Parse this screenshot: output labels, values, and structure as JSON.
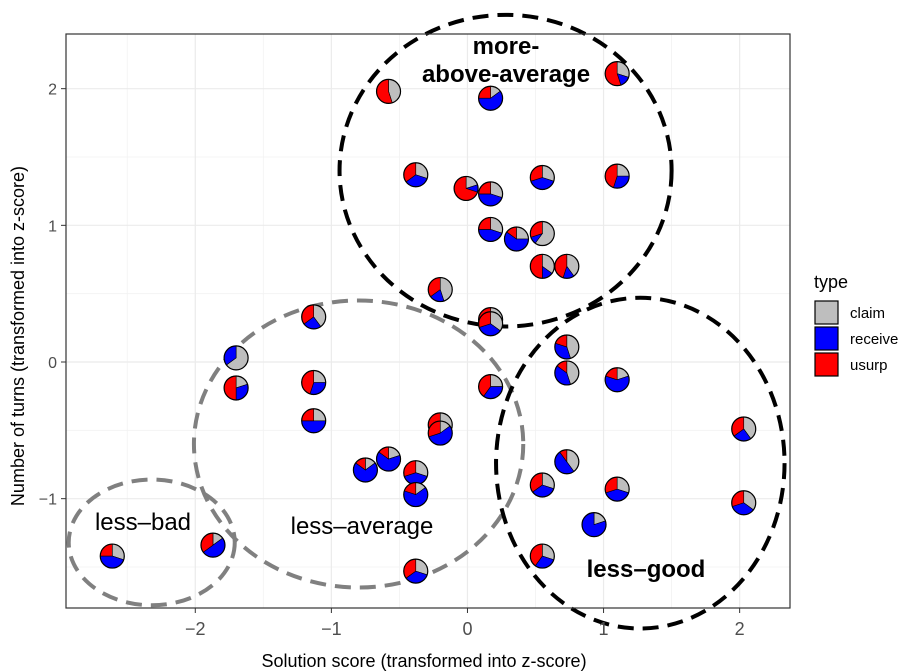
{
  "chart_data": {
    "type": "scatter",
    "subtype": "pie-glyph scatter",
    "xlabel": "Solution score (transformed into z-score)",
    "ylabel": "Number of turns (transformed into z-score)",
    "xlim": [
      -2.95,
      2.37
    ],
    "ylim": [
      -1.8,
      2.4
    ],
    "x_ticks": [
      -2,
      -1,
      0,
      1,
      2
    ],
    "y_ticks": [
      -1,
      0,
      1,
      2
    ],
    "x_tick_labels": [
      "−2",
      "−1",
      "0",
      "1",
      "2"
    ],
    "y_tick_labels": [
      "−1",
      "0",
      "1",
      "2"
    ],
    "grid": true,
    "legend": {
      "title": "type",
      "position": "right",
      "items": [
        {
          "label": "claim",
          "color": "#bebebe"
        },
        {
          "label": "receive",
          "color": "#0000ff"
        },
        {
          "label": "usurp",
          "color": "#ff0000"
        }
      ]
    },
    "colors": {
      "claim": "#bebebe",
      "receive": "#0000ff",
      "usurp": "#ff0000"
    },
    "points": [
      {
        "x": -2.61,
        "y": -1.42,
        "claim": 0.3,
        "receive": 0.45,
        "usurp": 0.25
      },
      {
        "x": -1.87,
        "y": -1.34,
        "claim": 0.15,
        "receive": 0.5,
        "usurp": 0.35
      },
      {
        "x": -1.7,
        "y": 0.03,
        "claim": 0.65,
        "receive": 0.35,
        "usurp": 0.0
      },
      {
        "x": -1.7,
        "y": -0.19,
        "claim": 0.2,
        "receive": 0.3,
        "usurp": 0.5
      },
      {
        "x": -1.13,
        "y": 0.33,
        "claim": 0.4,
        "receive": 0.25,
        "usurp": 0.35
      },
      {
        "x": -1.13,
        "y": -0.15,
        "claim": 0.25,
        "receive": 0.3,
        "usurp": 0.45
      },
      {
        "x": -1.13,
        "y": -0.43,
        "claim": 0.25,
        "receive": 0.5,
        "usurp": 0.25
      },
      {
        "x": -0.58,
        "y": 1.98,
        "claim": 0.45,
        "receive": 0.0,
        "usurp": 0.55
      },
      {
        "x": -0.58,
        "y": -0.71,
        "claim": 0.2,
        "receive": 0.65,
        "usurp": 0.15
      },
      {
        "x": -0.38,
        "y": 1.37,
        "claim": 0.3,
        "receive": 0.35,
        "usurp": 0.35
      },
      {
        "x": -0.38,
        "y": -0.81,
        "claim": 0.3,
        "receive": 0.4,
        "usurp": 0.3
      },
      {
        "x": -0.38,
        "y": -0.97,
        "claim": 0.15,
        "receive": 0.65,
        "usurp": 0.2
      },
      {
        "x": -0.38,
        "y": -1.53,
        "claim": 0.3,
        "receive": 0.35,
        "usurp": 0.35
      },
      {
        "x": -0.75,
        "y": -0.79,
        "claim": 0.15,
        "receive": 0.7,
        "usurp": 0.15
      },
      {
        "x": -0.2,
        "y": 0.53,
        "claim": 0.45,
        "receive": 0.2,
        "usurp": 0.35
      },
      {
        "x": -0.2,
        "y": -0.46,
        "claim": 0.35,
        "receive": 0.2,
        "usurp": 0.45
      },
      {
        "x": -0.2,
        "y": -0.52,
        "claim": 0.15,
        "receive": 0.55,
        "usurp": 0.3
      },
      {
        "x": -0.01,
        "y": 1.27,
        "claim": 0.2,
        "receive": 0.1,
        "usurp": 0.7
      },
      {
        "x": 0.17,
        "y": 1.93,
        "claim": 0.15,
        "receive": 0.6,
        "usurp": 0.25
      },
      {
        "x": 0.17,
        "y": 1.23,
        "claim": 0.3,
        "receive": 0.45,
        "usurp": 0.25
      },
      {
        "x": 0.17,
        "y": 0.97,
        "claim": 0.3,
        "receive": 0.45,
        "usurp": 0.25
      },
      {
        "x": 0.17,
        "y": 0.31,
        "claim": 0.3,
        "receive": 0.2,
        "usurp": 0.5
      },
      {
        "x": 0.17,
        "y": 0.28,
        "claim": 0.35,
        "receive": 0.35,
        "usurp": 0.3
      },
      {
        "x": 0.17,
        "y": -0.18,
        "claim": 0.25,
        "receive": 0.35,
        "usurp": 0.4
      },
      {
        "x": 0.36,
        "y": 0.9,
        "claim": 0.25,
        "receive": 0.6,
        "usurp": 0.15
      },
      {
        "x": 0.55,
        "y": 1.35,
        "claim": 0.3,
        "receive": 0.4,
        "usurp": 0.3
      },
      {
        "x": 0.55,
        "y": 0.94,
        "claim": 0.6,
        "receive": 0.1,
        "usurp": 0.3
      },
      {
        "x": 0.55,
        "y": 0.7,
        "claim": 0.35,
        "receive": 0.15,
        "usurp": 0.5
      },
      {
        "x": 0.55,
        "y": -0.9,
        "claim": 0.3,
        "receive": 0.35,
        "usurp": 0.35
      },
      {
        "x": 0.55,
        "y": -1.42,
        "claim": 0.3,
        "receive": 0.3,
        "usurp": 0.4
      },
      {
        "x": 0.73,
        "y": 0.7,
        "claim": 0.4,
        "receive": 0.15,
        "usurp": 0.45
      },
      {
        "x": 0.73,
        "y": 0.11,
        "claim": 0.45,
        "receive": 0.35,
        "usurp": 0.2
      },
      {
        "x": 0.73,
        "y": -0.08,
        "claim": 0.45,
        "receive": 0.4,
        "usurp": 0.15
      },
      {
        "x": 0.73,
        "y": -0.73,
        "claim": 0.4,
        "receive": 0.5,
        "usurp": 0.1
      },
      {
        "x": 0.93,
        "y": -1.19,
        "claim": 0.2,
        "receive": 0.8,
        "usurp": 0.0
      },
      {
        "x": 1.1,
        "y": 2.11,
        "claim": 0.3,
        "receive": 0.15,
        "usurp": 0.55
      },
      {
        "x": 1.1,
        "y": 1.36,
        "claim": 0.25,
        "receive": 0.3,
        "usurp": 0.45
      },
      {
        "x": 1.1,
        "y": -0.13,
        "claim": 0.2,
        "receive": 0.6,
        "usurp": 0.2
      },
      {
        "x": 1.1,
        "y": -0.93,
        "claim": 0.3,
        "receive": 0.4,
        "usurp": 0.3
      },
      {
        "x": 2.03,
        "y": -0.49,
        "claim": 0.4,
        "receive": 0.25,
        "usurp": 0.35
      },
      {
        "x": 2.03,
        "y": -1.03,
        "claim": 0.35,
        "receive": 0.35,
        "usurp": 0.3
      }
    ],
    "regions": [
      {
        "label": "more-\nabove-average",
        "cx": 0.28,
        "cy": 1.4,
        "rx": 1.22,
        "ry": 1.14,
        "color": "#000000",
        "bold": true
      },
      {
        "label": "less–average",
        "cx": -0.8,
        "cy": -0.6,
        "rx": 1.21,
        "ry": 1.05,
        "color": "#808080",
        "bold": false
      },
      {
        "label": "less–bad",
        "cx": -2.32,
        "cy": -1.32,
        "rx": 0.61,
        "ry": 0.46,
        "color": "#808080",
        "bold": false
      },
      {
        "label": "less–good",
        "cx": 1.27,
        "cy": -0.74,
        "rx": 1.06,
        "ry": 1.21,
        "color": "#000000",
        "bold": true
      }
    ]
  }
}
